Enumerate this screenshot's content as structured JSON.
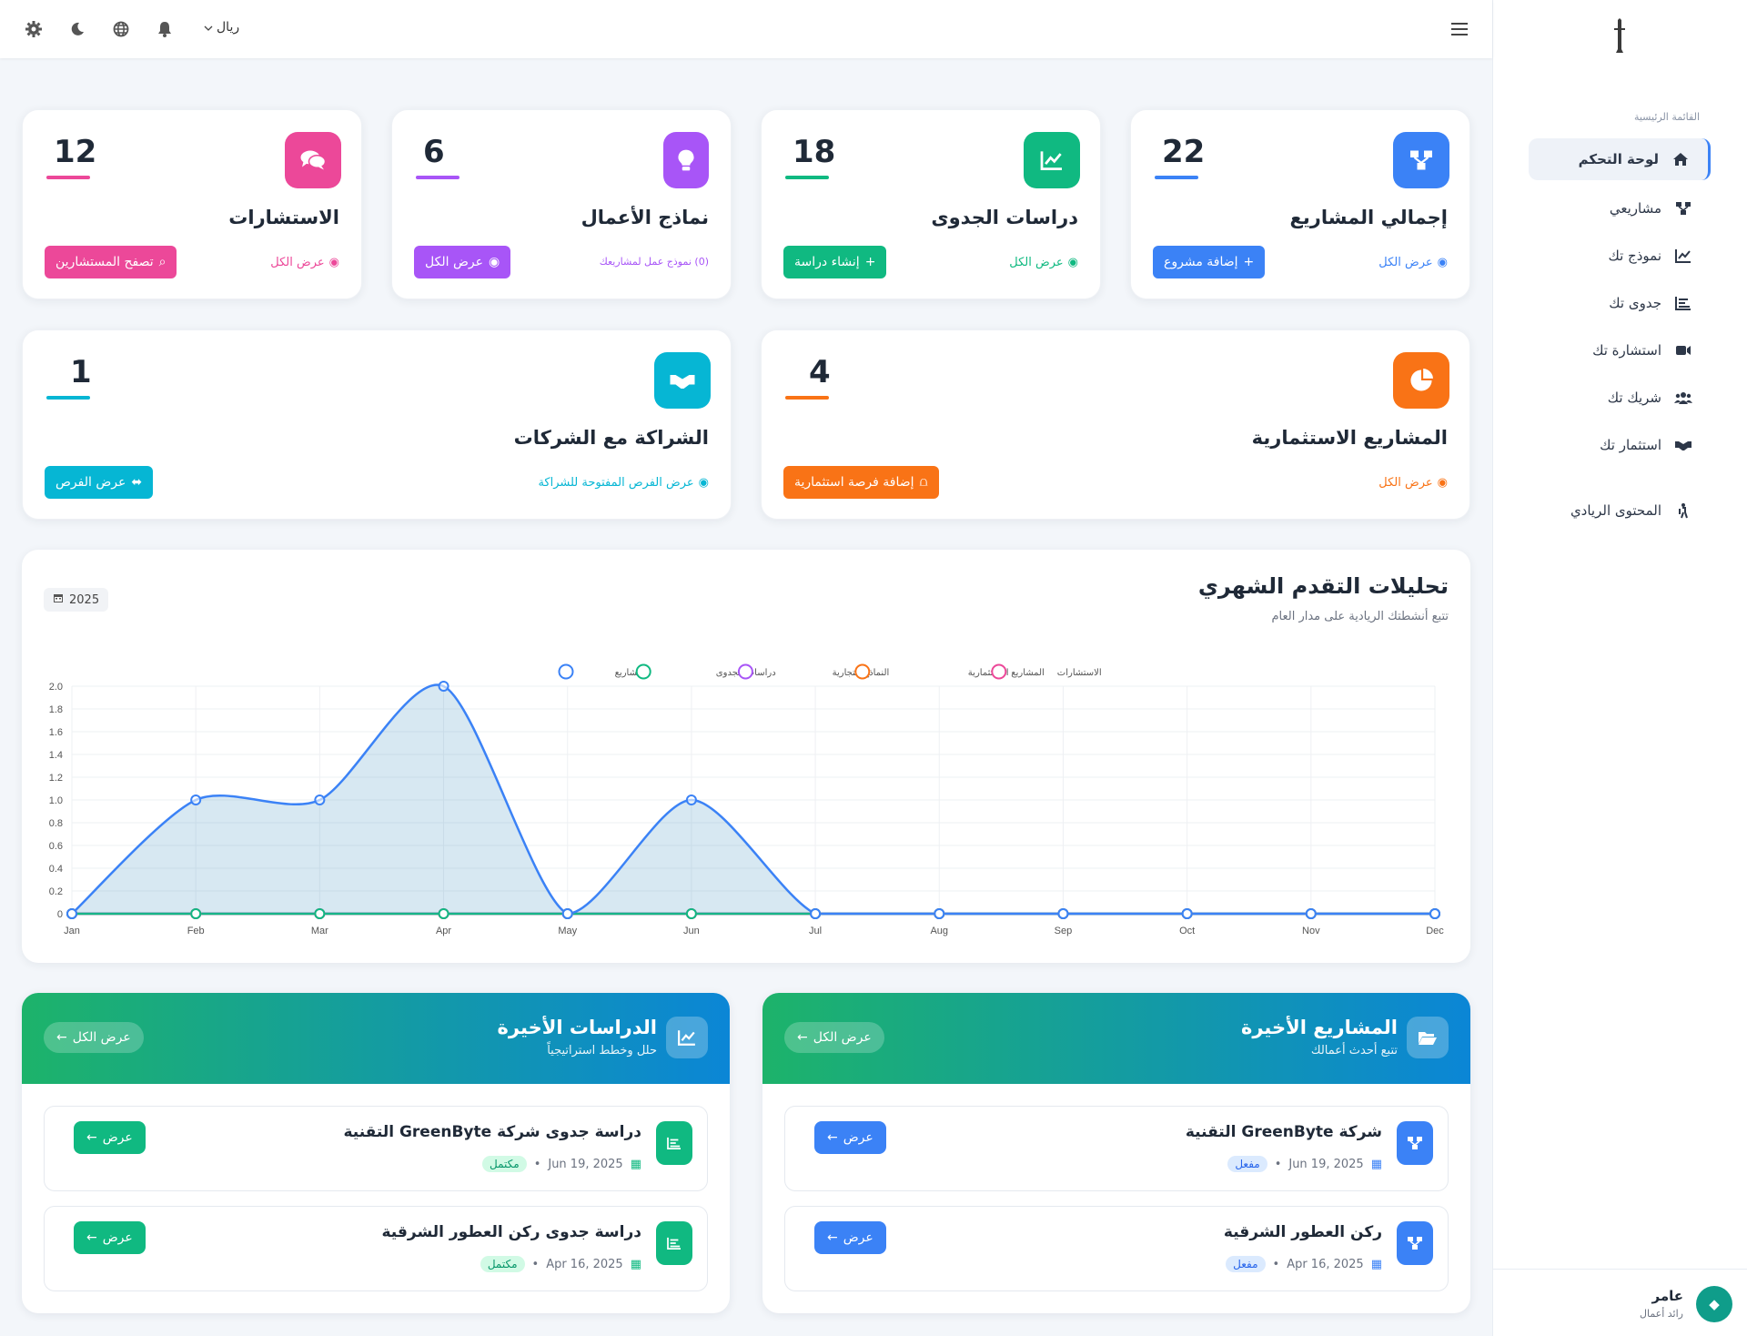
{
  "sidebar": {
    "menu_title": "القائمة الرئيسية",
    "items": [
      {
        "label": "لوحة التحكم",
        "icon": "home-icon"
      },
      {
        "label": "مشاريعي",
        "icon": "project-diagram-icon"
      },
      {
        "label": "نموذج تك",
        "icon": "chart-line-icon"
      },
      {
        "label": "جدوى تك",
        "icon": "chart-bar-icon"
      },
      {
        "label": "استشارة تك",
        "icon": "video-icon"
      },
      {
        "label": "شريك تك",
        "icon": "users-icon"
      },
      {
        "label": "استثمار تك",
        "icon": "handshake-icon"
      },
      {
        "label": "المحتوى الريادي",
        "icon": "hiking-icon"
      }
    ],
    "user": {
      "name": "عامر",
      "role": "رائد أعمال"
    }
  },
  "topbar": {
    "currency": "ريال"
  },
  "stats": [
    {
      "number": "22",
      "title": "إجمالي المشاريع",
      "link": "عرض الكل",
      "button": "إضافة مشروع",
      "color": "#3b82f6"
    },
    {
      "number": "18",
      "title": "دراسات الجدوى",
      "link": "عرض الكل",
      "button": "إنشاء دراسة",
      "color": "#10b981"
    },
    {
      "number": "6",
      "title": "نماذج الأعمال",
      "link": "(0) نموذج عمل لمشاريعك",
      "button": "عرض الكل",
      "color": "#a855f7"
    },
    {
      "number": "12",
      "title": "الاستشارات",
      "link": "عرض الكل",
      "button": "تصفح المستشارين",
      "color": "#ec4899"
    },
    {
      "number": "4",
      "title": "المشاريع الاستثمارية",
      "link": "عرض الكل",
      "button": "إضافة فرصة استثمارية",
      "color": "#f97316"
    },
    {
      "number": "1",
      "title": "الشراكة مع الشركات",
      "link": "عرض الفرص المفتوحة للشراكة",
      "button": "عرض الفرص",
      "color": "#06b6d4"
    }
  ],
  "chart": {
    "title": "تحليلات التقدم الشهري",
    "subtitle": "تتبع أنشطتك الريادية على مدار العام",
    "year": "2025"
  },
  "chart_data": {
    "type": "line",
    "x": [
      "Jan",
      "Feb",
      "Mar",
      "Apr",
      "May",
      "Jun",
      "Jul",
      "Aug",
      "Sep",
      "Oct",
      "Nov",
      "Dec"
    ],
    "ylim": [
      0,
      2.0
    ],
    "yticks": [
      "0",
      "0.2",
      "0.4",
      "0.6",
      "0.8",
      "1.0",
      "1.2",
      "1.4",
      "1.6",
      "1.8",
      "2.0"
    ],
    "legend_position": "top",
    "series": [
      {
        "name": "المشاريع",
        "color": "#3b82f6",
        "fill": true,
        "values": [
          0,
          1,
          1,
          2,
          0,
          1,
          0,
          0,
          0,
          0,
          0,
          0
        ]
      },
      {
        "name": "دراسات الجدوى",
        "color": "#10b981",
        "fill": false,
        "values": [
          0,
          0,
          0,
          0,
          0,
          0,
          0,
          0,
          0,
          0,
          0,
          0
        ]
      },
      {
        "name": "النماذج التجارية",
        "color": "#a855f7",
        "fill": false,
        "values": [
          0,
          0,
          0,
          0,
          0,
          0,
          0,
          0,
          0,
          0,
          0,
          0
        ]
      },
      {
        "name": "المشاريع الاستثمارية",
        "color": "#f97316",
        "fill": false,
        "values": [
          0,
          0,
          0,
          0,
          0,
          0,
          0,
          0,
          0,
          0,
          0,
          0
        ]
      },
      {
        "name": "الاستشارات",
        "color": "#ec4899",
        "fill": false,
        "values": [
          0,
          0,
          0,
          0,
          0,
          0,
          0,
          0,
          0,
          0,
          0,
          0
        ]
      }
    ]
  },
  "recent_projects": {
    "title": "المشاريع الأخيرة",
    "subtitle": "تتبع أحدث أعمالك",
    "view_all": "عرض الكل",
    "items": [
      {
        "title": "شركة GreenByte التقنية",
        "date": "Jun 19, 2025",
        "status": "مفعل",
        "button": "عرض"
      },
      {
        "title": "ركن العطور الشرقية",
        "date": "Apr 16, 2025",
        "status": "مفعل",
        "button": "عرض"
      }
    ]
  },
  "recent_studies": {
    "title": "الدراسات الأخيرة",
    "subtitle": "حلل وخطط استراتيجياً",
    "view_all": "عرض الكل",
    "items": [
      {
        "title": "دراسة جدوى شركة GreenByte التقنية",
        "date": "Jun 19, 2025",
        "status": "مكتمل",
        "button": "عرض"
      },
      {
        "title": "دراسة جدوى ركن العطور الشرقية",
        "date": "Apr 16, 2025",
        "status": "مكتمل",
        "button": "عرض"
      }
    ]
  }
}
